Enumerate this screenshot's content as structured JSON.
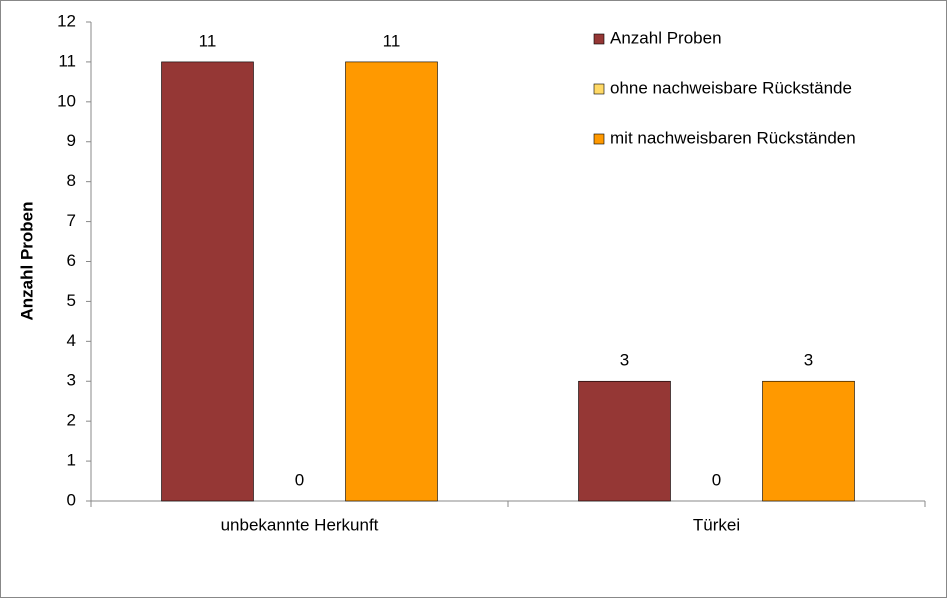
{
  "chart_data": {
    "type": "bar",
    "y_label": "Anzahl Proben",
    "categories": [
      "unbekannte Herkunft",
      "Türkei"
    ],
    "series": [
      {
        "name": "Anzahl Proben",
        "color": "#953735",
        "values": [
          11,
          3
        ]
      },
      {
        "name": "ohne nachweisbare Rückstände",
        "color": "#ffd966",
        "values": [
          0,
          0
        ]
      },
      {
        "name": "mit nachweisbaren Rückständen",
        "color": "#ff9900",
        "values": [
          11,
          3
        ]
      }
    ],
    "ylim": [
      0,
      12
    ],
    "yticks": [
      0,
      1,
      2,
      3,
      4,
      5,
      6,
      7,
      8,
      9,
      10,
      11,
      12
    ],
    "legend": "upper right",
    "show_value_labels": true
  }
}
